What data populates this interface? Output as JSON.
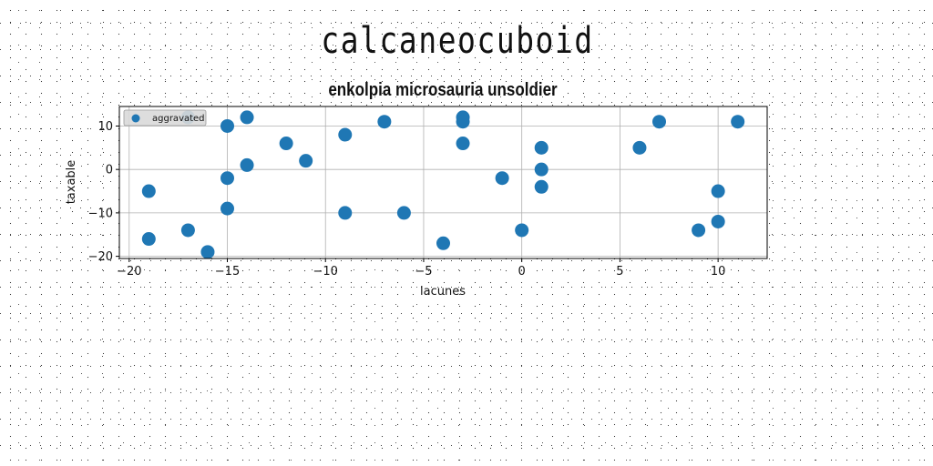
{
  "suptitle": "calcaneocuboid",
  "chart_data": {
    "type": "scatter",
    "title": "enkolpia microsauria unsoldier",
    "xlabel": "lacunes",
    "ylabel": "taxable",
    "xlim": [
      -20.5,
      12.5
    ],
    "ylim": [
      -20.5,
      14.5
    ],
    "xticks": [
      -20,
      -15,
      -10,
      -5,
      0,
      5,
      10
    ],
    "xtick_labels": [
      "−20",
      "−15",
      "−10",
      "−5",
      "0",
      "5",
      "10"
    ],
    "yticks": [
      -20,
      -10,
      0,
      10
    ],
    "ytick_labels": [
      "−20",
      "−10",
      "0",
      "10"
    ],
    "grid": true,
    "legend": "upper-left",
    "series": [
      {
        "name": "aggravated",
        "color": "#1f77b4",
        "points": [
          [
            -17,
            12
          ],
          [
            -14,
            12
          ],
          [
            -15,
            10
          ],
          [
            -12,
            6
          ],
          [
            -11,
            2
          ],
          [
            -14,
            1
          ],
          [
            -15,
            -2
          ],
          [
            -19,
            -5
          ],
          [
            -15,
            -9
          ],
          [
            -17,
            -14
          ],
          [
            -19,
            -16
          ],
          [
            -16,
            -19
          ],
          [
            -9,
            8
          ],
          [
            -7,
            11
          ],
          [
            -9,
            -10
          ],
          [
            -6,
            -10
          ],
          [
            -4,
            -17
          ],
          [
            -3,
            12
          ],
          [
            -3,
            11
          ],
          [
            -3,
            6
          ],
          [
            -1,
            -2
          ],
          [
            0,
            -14
          ],
          [
            1,
            5
          ],
          [
            1,
            0
          ],
          [
            1,
            -4
          ],
          [
            6,
            5
          ],
          [
            7,
            11
          ],
          [
            9,
            -14
          ],
          [
            10,
            -5
          ],
          [
            10,
            -12
          ],
          [
            11,
            11
          ]
        ]
      }
    ]
  }
}
